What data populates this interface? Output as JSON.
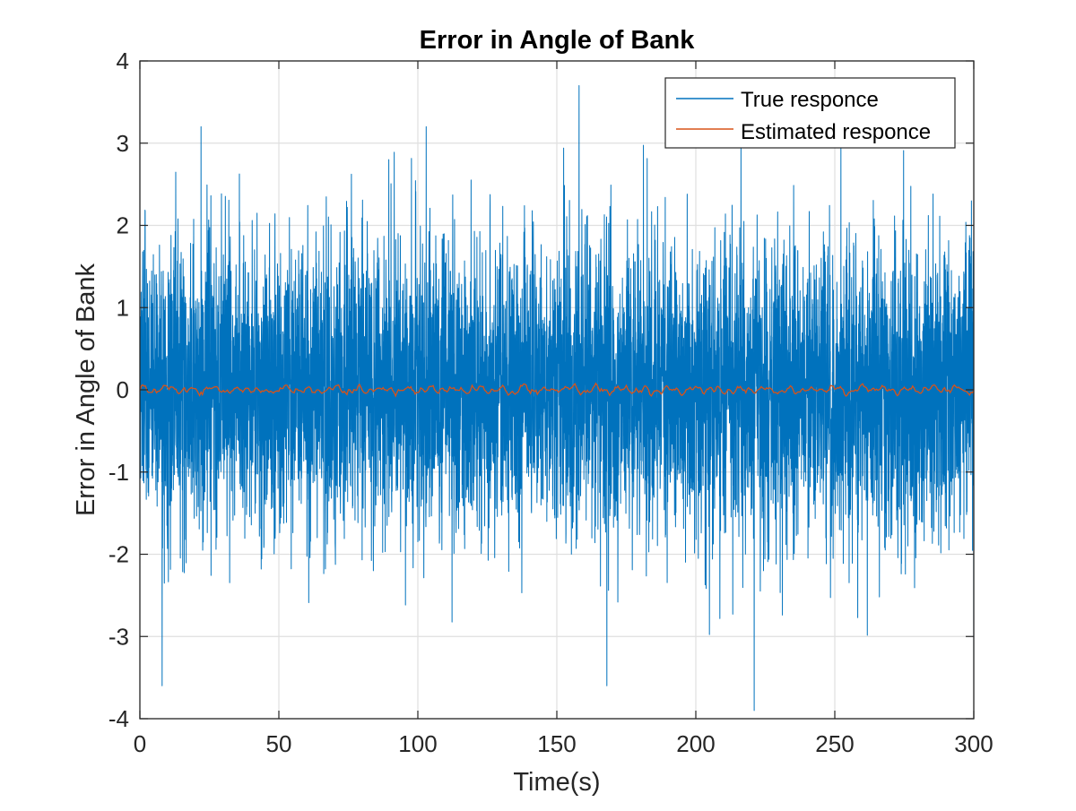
{
  "chart_data": {
    "type": "line",
    "title": "Error in Angle of Bank",
    "xlabel": "Time(s)",
    "ylabel": "Error in Angle of Bank",
    "xlim": [
      0,
      300
    ],
    "ylim": [
      -4,
      4
    ],
    "xticks": [
      0,
      50,
      100,
      150,
      200,
      250,
      300
    ],
    "yticks": [
      -4,
      -3,
      -2,
      -1,
      0,
      1,
      2,
      3,
      4
    ],
    "grid": true,
    "legend_position": "top-right",
    "series": [
      {
        "name": "True responce",
        "color": "#0072BD",
        "style": "dense noise around 0",
        "mean": 0,
        "std_dev": 0.9,
        "peaks": [
          {
            "x": 22,
            "y": 3.2
          },
          {
            "x": 103,
            "y": 3.2
          },
          {
            "x": 158,
            "y": 3.7
          },
          {
            "x": 8,
            "y": -3.6
          },
          {
            "x": 168,
            "y": -3.6
          },
          {
            "x": 221,
            "y": -3.9
          },
          {
            "x": 300,
            "y": -3.6
          }
        ]
      },
      {
        "name": "Estimated responce",
        "color": "#D95319",
        "style": "near zero",
        "mean": 0,
        "amplitude": 0.05
      }
    ]
  }
}
